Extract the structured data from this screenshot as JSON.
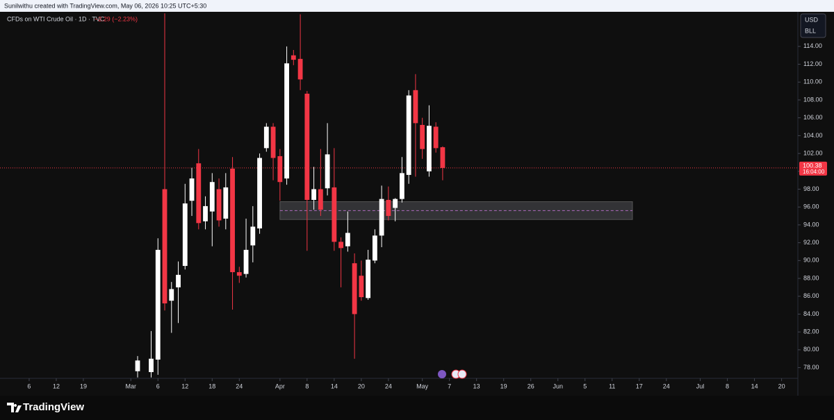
{
  "header": {
    "author_line": "Sunilwithu created with TradingView.com, May 06, 2026 10:25 UTC+5:30",
    "symbol": "CFDs on WTI Crude Oil · 1D · TVC",
    "change": "−2.29 (−2.23%)",
    "currency": "USD",
    "unit": "BLL",
    "brand": "TradingView"
  },
  "chart_data": {
    "type": "candlestick",
    "up_color": "#ffffff",
    "down_color": "#f23645",
    "x": [
      16,
      18,
      19,
      20,
      21,
      22,
      23,
      24,
      25,
      26,
      27,
      28,
      29,
      30,
      31,
      32,
      33,
      34,
      35,
      36,
      37,
      38,
      39,
      40,
      41,
      42,
      43,
      44,
      45,
      46,
      47,
      48,
      49,
      50,
      51,
      52,
      53,
      54,
      55,
      56,
      57,
      58,
      59,
      60,
      61
    ],
    "open": [
      77.6,
      77.5,
      78.9,
      98.0,
      85.5,
      87.0,
      89.4,
      96.7,
      100.9,
      94.4,
      95.5,
      98.0,
      94.7,
      100.3,
      88.7,
      88.5,
      91.7,
      93.6,
      102.6,
      105.0,
      101.7,
      99.2,
      113.0,
      112.6,
      108.7,
      96.8,
      98.0,
      98.1,
      98.2,
      92.1,
      91.6,
      89.7,
      88.3,
      85.8,
      90.0,
      92.8,
      96.8,
      95.9,
      96.9,
      99.6,
      109.1,
      105.2,
      100.0,
      105.0,
      102.7
    ],
    "high": [
      79.3,
      82.1,
      92.5,
      117.7,
      87.6,
      89.9,
      98.6,
      100.4,
      102.5,
      97.2,
      99.8,
      99.2,
      99.8,
      101.6,
      89.3,
      94.7,
      96.1,
      102.0,
      105.4,
      105.4,
      102.5,
      114.0,
      113.6,
      117.6,
      109.0,
      100.5,
      102.5,
      105.4,
      102.6,
      92.6,
      95.5,
      90.8,
      90.0,
      91.2,
      93.5,
      98.4,
      98.3,
      97.0,
      101.6,
      109.1,
      110.9,
      106.0,
      107.4,
      105.5,
      102.8
    ],
    "low": [
      76.9,
      76.9,
      77.2,
      84.4,
      81.9,
      83.0,
      89.0,
      95.0,
      93.5,
      93.5,
      91.6,
      93.8,
      93.5,
      84.5,
      87.5,
      88.1,
      89.8,
      93.0,
      102.2,
      99.0,
      96.7,
      98.5,
      111.9,
      109.1,
      91.1,
      95.7,
      95.0,
      97.3,
      91.1,
      87.0,
      91.0,
      79.0,
      85.5,
      85.6,
      89.7,
      91.5,
      94.5,
      94.4,
      96.5,
      98.6,
      99.4,
      101.4,
      99.4,
      102.1,
      99.0
    ],
    "close": [
      78.8,
      79.0,
      91.2,
      85.2,
      86.8,
      88.4,
      96.4,
      99.2,
      94.2,
      96.1,
      98.8,
      94.5,
      98.2,
      88.7,
      88.3,
      91.2,
      93.8,
      101.5,
      105.0,
      101.5,
      98.8,
      112.1,
      112.5,
      110.3,
      96.8,
      98.0,
      95.7,
      101.9,
      92.1,
      91.4,
      93.1,
      84.0,
      85.9,
      90.1,
      92.8,
      96.9,
      95.0,
      96.9,
      99.8,
      108.5,
      105.4,
      102.5,
      105.1,
      102.6,
      100.38
    ],
    "xlim": [
      -4.3,
      113.4
    ],
    "xticks": [
      {
        "value": 0,
        "label": "6"
      },
      {
        "value": 4,
        "label": "12"
      },
      {
        "value": 8,
        "label": "19"
      },
      {
        "value": 15,
        "label": "Mar"
      },
      {
        "value": 19,
        "label": "6"
      },
      {
        "value": 23,
        "label": "12"
      },
      {
        "value": 27,
        "label": "18"
      },
      {
        "value": 31,
        "label": "24"
      },
      {
        "value": 37,
        "label": "Apr"
      },
      {
        "value": 41,
        "label": "8"
      },
      {
        "value": 45,
        "label": "14"
      },
      {
        "value": 49,
        "label": "20"
      },
      {
        "value": 53,
        "label": "24"
      },
      {
        "value": 58,
        "label": "May"
      },
      {
        "value": 62,
        "label": "7"
      },
      {
        "value": 66,
        "label": "13"
      },
      {
        "value": 70,
        "label": "19"
      },
      {
        "value": 74,
        "label": "26"
      },
      {
        "value": 78,
        "label": "Jun"
      },
      {
        "value": 82,
        "label": "5"
      },
      {
        "value": 86,
        "label": "11"
      },
      {
        "value": 90,
        "label": "17"
      },
      {
        "value": 94,
        "label": "24"
      },
      {
        "value": 99,
        "label": "Jul"
      },
      {
        "value": 103,
        "label": "8"
      },
      {
        "value": 107,
        "label": "14"
      },
      {
        "value": 111,
        "label": "20"
      }
    ],
    "ylim": [
      76.8,
      117.8
    ],
    "yticks": [
      {
        "value": 78,
        "label": "78.00"
      },
      {
        "value": 80,
        "label": "80.00"
      },
      {
        "value": 82,
        "label": "82.00"
      },
      {
        "value": 84,
        "label": "84.00"
      },
      {
        "value": 86,
        "label": "86.00"
      },
      {
        "value": 88,
        "label": "88.00"
      },
      {
        "value": 90,
        "label": "90.00"
      },
      {
        "value": 92,
        "label": "92.00"
      },
      {
        "value": 94,
        "label": "94.00"
      },
      {
        "value": 96,
        "label": "96.00"
      },
      {
        "value": 98,
        "label": "98.00"
      },
      {
        "value": 100,
        "label": "100.00"
      },
      {
        "value": 102,
        "label": "102.00"
      },
      {
        "value": 104,
        "label": "104.00"
      },
      {
        "value": 106,
        "label": "106.00"
      },
      {
        "value": 108,
        "label": "108.00"
      },
      {
        "value": 110,
        "label": "110.00"
      },
      {
        "value": 112,
        "label": "112.00"
      },
      {
        "value": 114,
        "label": "114.00"
      }
    ],
    "last_price": {
      "value": 100.38,
      "label": "100.38",
      "countdown": "16:04:00",
      "color": "#f23645"
    },
    "zone": {
      "top": 96.6,
      "bottom": 94.6,
      "mid": 95.6,
      "x_start": 37,
      "x_end": 89
    }
  }
}
